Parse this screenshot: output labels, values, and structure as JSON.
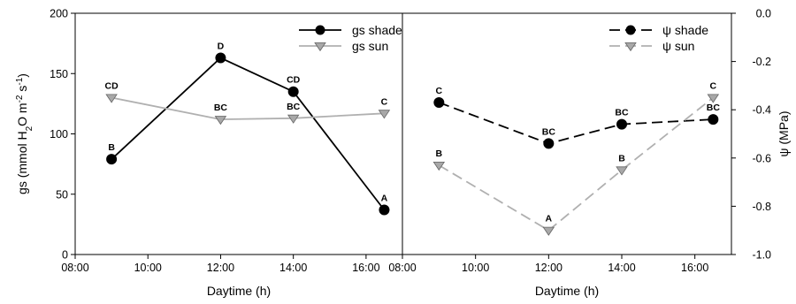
{
  "colors": {
    "shade": "#000000",
    "sun": "#b0b0b0",
    "sun_marker": "#a8a8a8"
  },
  "chart_data": [
    {
      "type": "line",
      "xlabel": "Daytime (h)",
      "ylabel_parts": [
        "gs (mmol H",
        "2",
        "O m",
        "-2",
        " s",
        "-1",
        ")"
      ],
      "xlim": [
        8,
        17
      ],
      "ylim": [
        0,
        200
      ],
      "xticks": [
        "08:00",
        "10:00",
        "12:00",
        "14:00",
        "16:00"
      ],
      "yticks": [
        "0",
        "50",
        "100",
        "150",
        "200"
      ],
      "ytick_values": [
        0,
        50,
        100,
        150,
        200
      ],
      "legend": "top-right",
      "x": [
        9.0,
        12.0,
        14.0,
        16.5
      ],
      "series": [
        {
          "name": "gs shade",
          "style": "solid",
          "marker": "circle",
          "values": [
            79,
            163,
            135,
            37
          ],
          "labels": [
            "B",
            "D",
            "CD",
            "A"
          ]
        },
        {
          "name": "gs sun",
          "style": "solid",
          "marker": "triangle",
          "values": [
            130,
            112,
            113,
            117
          ],
          "labels": [
            "CD",
            "BC",
            "BC",
            "C"
          ]
        }
      ]
    },
    {
      "type": "line",
      "xlabel": "Daytime (h)",
      "ylabel": "ψ (MPa)",
      "xlim": [
        8,
        17
      ],
      "ylim": [
        -1.0,
        0.0
      ],
      "xticks": [
        "08:00",
        "10:00",
        "12:00",
        "14:00",
        "16:00"
      ],
      "yticks": [
        "0.0",
        "-0.2",
        "-0.4",
        "-0.6",
        "-0.8",
        "-1.0"
      ],
      "ytick_values": [
        0.0,
        -0.2,
        -0.4,
        -0.6,
        -0.8,
        -1.0
      ],
      "legend": "top-right",
      "x": [
        9.0,
        12.0,
        14.0,
        16.5
      ],
      "series": [
        {
          "name": "ψ shade",
          "style": "dashed",
          "marker": "circle",
          "values": [
            -0.37,
            -0.54,
            -0.46,
            -0.44
          ],
          "labels": [
            "C",
            "BC",
            "BC",
            "BC"
          ]
        },
        {
          "name": "ψ sun",
          "style": "dashed",
          "marker": "triangle",
          "values": [
            -0.63,
            -0.9,
            -0.65,
            -0.35
          ],
          "labels": [
            "B",
            "A",
            "B",
            "C"
          ]
        }
      ]
    }
  ]
}
